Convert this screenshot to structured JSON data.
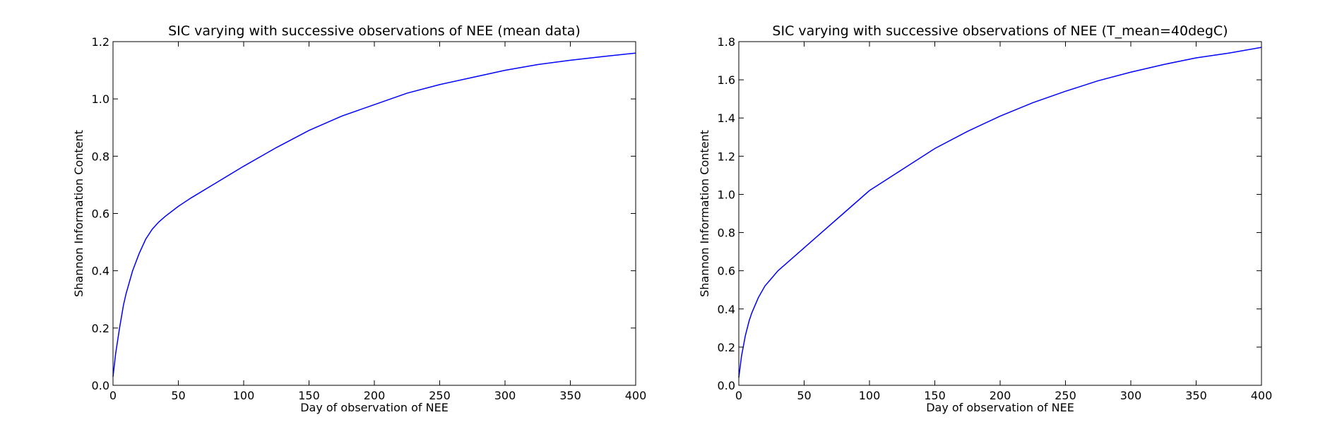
{
  "chart_data": [
    {
      "type": "line",
      "title": "SIC varying with successive observations of NEE (mean data)",
      "xlabel": "Day of observation of NEE",
      "ylabel": "Shannon Information Content",
      "xlim": [
        0,
        400
      ],
      "ylim": [
        0,
        1.2
      ],
      "xticks": [
        "0",
        "50",
        "100",
        "150",
        "200",
        "250",
        "300",
        "350",
        "400"
      ],
      "yticks": [
        "0.0",
        "0.2",
        "0.4",
        "0.6",
        "0.8",
        "1.0",
        "1.2"
      ],
      "grid": false,
      "color": "#0000ff",
      "series": [
        {
          "x": [
            0,
            2,
            5,
            8,
            10,
            15,
            20,
            25,
            30,
            35,
            40,
            50,
            60,
            80,
            100,
            125,
            150,
            175,
            200,
            225,
            250,
            275,
            300,
            325,
            350,
            375,
            400
          ],
          "values": [
            0.03,
            0.11,
            0.2,
            0.28,
            0.32,
            0.4,
            0.46,
            0.51,
            0.545,
            0.57,
            0.59,
            0.625,
            0.655,
            0.71,
            0.765,
            0.83,
            0.89,
            0.94,
            0.98,
            1.02,
            1.05,
            1.075,
            1.1,
            1.12,
            1.135,
            1.148,
            1.16
          ]
        }
      ]
    },
    {
      "type": "line",
      "title": "SIC varying with successive observations of NEE (T_mean=40degC)",
      "xlabel": "Day of observation of NEE",
      "ylabel": "Shannon Information Content",
      "xlim": [
        0,
        400
      ],
      "ylim": [
        0,
        1.8
      ],
      "xticks": [
        "0",
        "50",
        "100",
        "150",
        "200",
        "250",
        "300",
        "350",
        "400"
      ],
      "yticks": [
        "0.0",
        "0.2",
        "0.4",
        "0.6",
        "0.8",
        "1.0",
        "1.2",
        "1.4",
        "1.6",
        "1.8"
      ],
      "grid": false,
      "color": "#0000ff",
      "series": [
        {
          "x": [
            0,
            2,
            5,
            8,
            10,
            15,
            20,
            25,
            30,
            35,
            40,
            50,
            60,
            80,
            100,
            125,
            150,
            175,
            200,
            225,
            250,
            275,
            300,
            325,
            350,
            375,
            400
          ],
          "values": [
            0.04,
            0.15,
            0.26,
            0.34,
            0.38,
            0.46,
            0.52,
            0.56,
            0.6,
            0.63,
            0.66,
            0.72,
            0.78,
            0.9,
            1.02,
            1.13,
            1.24,
            1.33,
            1.41,
            1.48,
            1.54,
            1.595,
            1.64,
            1.68,
            1.715,
            1.74,
            1.77
          ]
        }
      ]
    }
  ]
}
